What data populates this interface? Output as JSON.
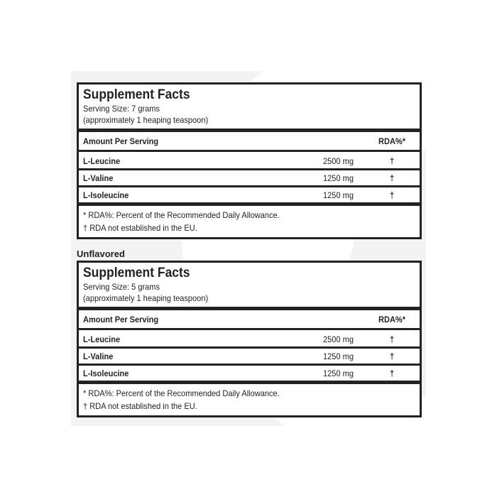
{
  "panels": [
    {
      "title": "Supplement Facts",
      "serving_size": "Serving Size: 7 grams",
      "serving_note": "(approximately 1 heaping teaspoon)",
      "header": {
        "amount": "Amount Per Serving",
        "rda": "RDA%*"
      },
      "rows": [
        [
          "L-Leucine",
          "2500 mg",
          "†"
        ],
        [
          "L-Valine",
          "1250 mg",
          "†"
        ],
        [
          "L-Isoleucine",
          "1250 mg",
          "†"
        ]
      ],
      "footnotes": [
        "* RDA%: Percent of the Recommended Daily Allowance.",
        "† RDA not established in the EU."
      ]
    },
    {
      "label": "Unflavored",
      "title": "Supplement Facts",
      "serving_size": "Serving Size: 5 grams",
      "serving_note": "(approximately 1 heaping teaspoon)",
      "header": {
        "amount": "Amount Per Serving",
        "rda": "RDA%*"
      },
      "rows": [
        [
          "L-Leucine",
          "2500 mg",
          "†"
        ],
        [
          "L-Valine",
          "1250 mg",
          "†"
        ],
        [
          "L-Isoleucine",
          "1250 mg",
          "†"
        ]
      ],
      "footnotes": [
        "* RDA%: Percent of the Recommended Daily Allowance.",
        "† RDA not established in the EU."
      ]
    }
  ]
}
